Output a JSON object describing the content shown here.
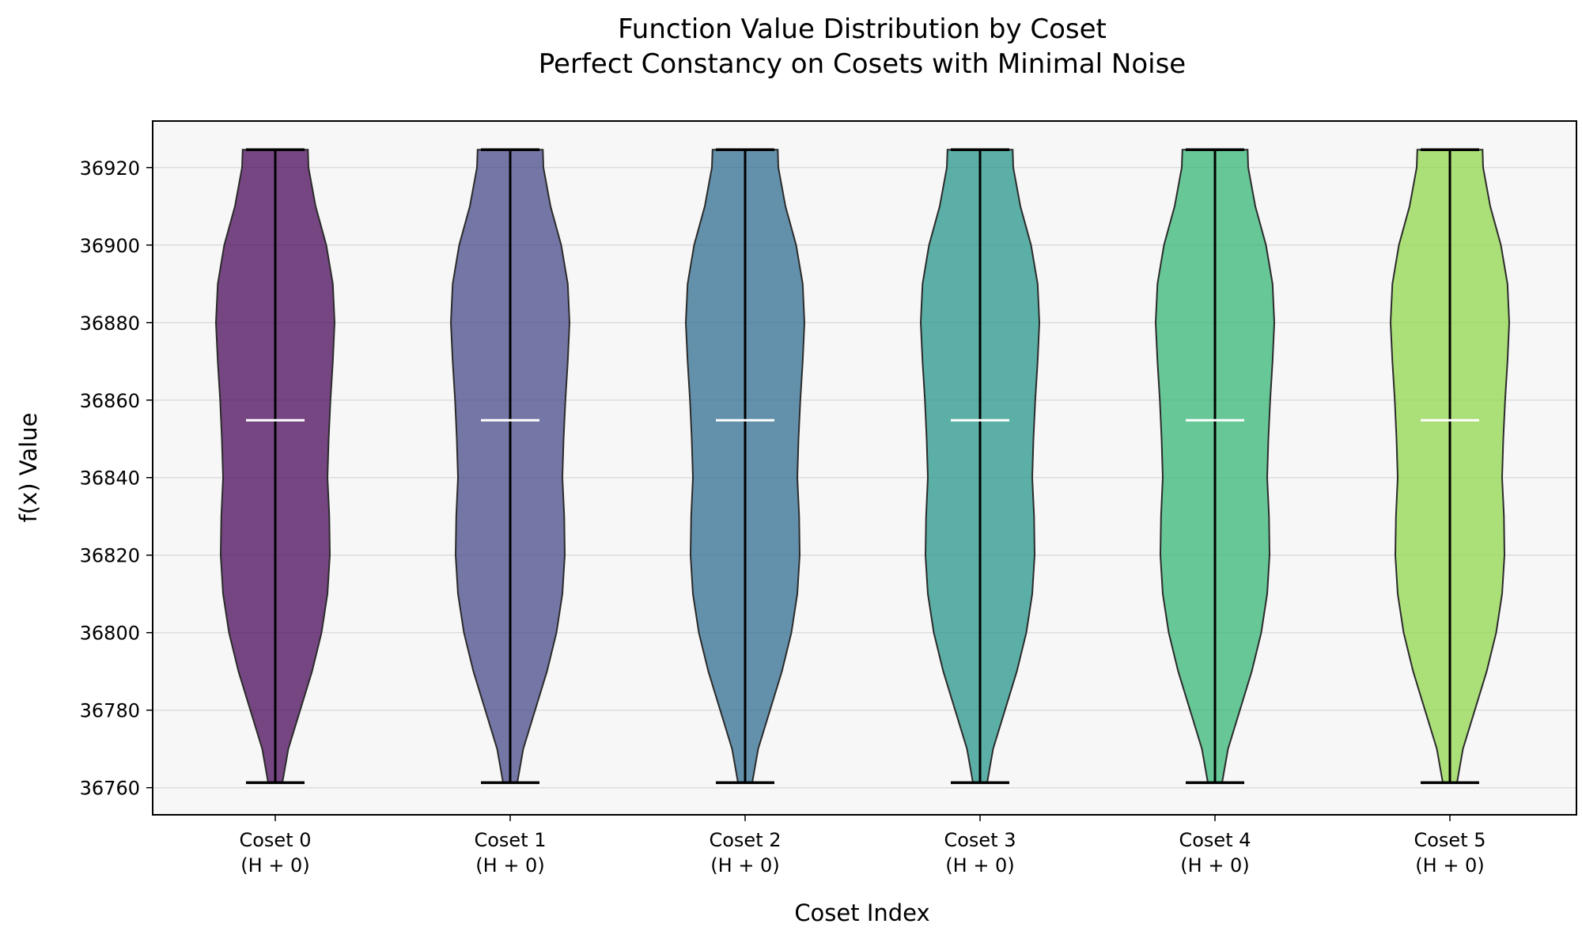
{
  "chart_data": {
    "type": "violin",
    "title": "Function Value Distribution by Coset",
    "subtitle": "Perfect Constancy on Cosets with Minimal Noise",
    "xlabel": "Coset Index",
    "ylabel": "f(x) Value",
    "ylim": [
      36753,
      36932
    ],
    "yticks": [
      36760,
      36780,
      36800,
      36820,
      36840,
      36860,
      36880,
      36900,
      36920
    ],
    "grid": "horizontal",
    "categories": [
      {
        "line1": "Coset 0",
        "line2": "(H + 0)"
      },
      {
        "line1": "Coset 1",
        "line2": "(H + 0)"
      },
      {
        "line1": "Coset 2",
        "line2": "(H + 0)"
      },
      {
        "line1": "Coset 3",
        "line2": "(H + 0)"
      },
      {
        "line1": "Coset 4",
        "line2": "(H + 0)"
      },
      {
        "line1": "Coset 5",
        "line2": "(H + 0)"
      }
    ],
    "series": [
      {
        "color": "#440154",
        "min": 36761.3,
        "max": 36924.6,
        "mean": 36854.8
      },
      {
        "color": "#414487",
        "min": 36761.3,
        "max": 36924.6,
        "mean": 36854.8
      },
      {
        "color": "#2a6a8e",
        "min": 36761.3,
        "max": 36924.6,
        "mean": 36854.8
      },
      {
        "color": "#1f9386",
        "min": 36761.3,
        "max": 36924.6,
        "mean": 36854.8
      },
      {
        "color": "#2fb472",
        "min": 36761.3,
        "max": 36924.6,
        "mean": 36854.8
      },
      {
        "color": "#8ed645",
        "min": 36761.3,
        "max": 36924.6,
        "mean": 36854.8
      }
    ],
    "density_profile": [
      [
        36761.3,
        0.12
      ],
      [
        36770,
        0.22
      ],
      [
        36780,
        0.42
      ],
      [
        36790,
        0.62
      ],
      [
        36800,
        0.78
      ],
      [
        36810,
        0.88
      ],
      [
        36820,
        0.92
      ],
      [
        36830,
        0.91
      ],
      [
        36840,
        0.88
      ],
      [
        36850,
        0.9
      ],
      [
        36860,
        0.93
      ],
      [
        36870,
        0.97
      ],
      [
        36880,
        1.0
      ],
      [
        36890,
        0.97
      ],
      [
        36900,
        0.86
      ],
      [
        36910,
        0.68
      ],
      [
        36920,
        0.56
      ],
      [
        36924.6,
        0.55
      ]
    ],
    "colors": {
      "plot_background": "#f7f7f7",
      "violin_edge": "#2b2b2b",
      "range_line": "#000000",
      "mean_line": "#ffffff",
      "grid": "#dddddd"
    }
  }
}
